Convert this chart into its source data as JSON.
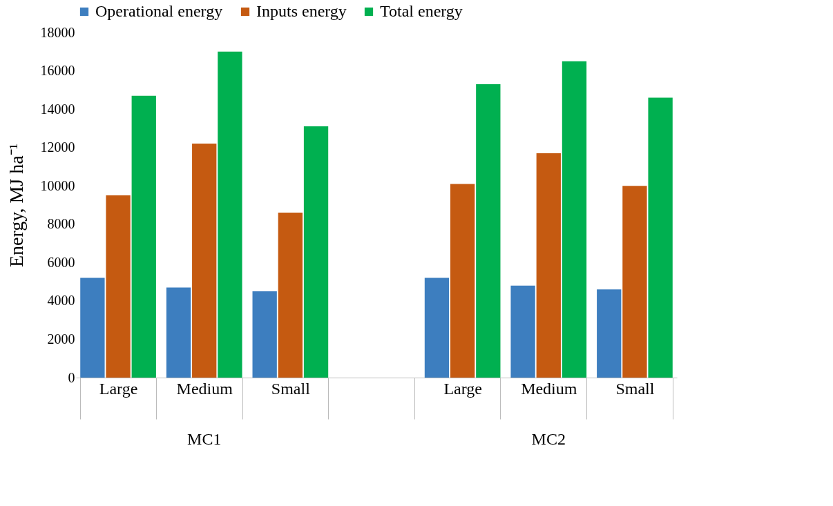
{
  "chart_data": {
    "type": "bar",
    "ylabel": "Energy, MJ ha⁻¹",
    "categories": [
      "Large",
      "Medium",
      "Small",
      null,
      "Large",
      "Medium",
      "Small"
    ],
    "series": [
      {
        "name": "Operational energy",
        "color": "#3d7ebf",
        "values": [
          5200,
          4700,
          4500,
          null,
          5200,
          4800,
          4600
        ]
      },
      {
        "name": "Inputs energy",
        "color": "#c55a11",
        "values": [
          9500,
          12200,
          8600,
          null,
          10100,
          11700,
          10000
        ]
      },
      {
        "name": "Total energy",
        "color": "#00b050",
        "values": [
          14700,
          17000,
          13100,
          null,
          15300,
          16500,
          14600
        ]
      }
    ],
    "ylim": [
      0,
      18000
    ],
    "yticks": [
      0,
      2000,
      4000,
      6000,
      8000,
      10000,
      12000,
      14000,
      16000,
      18000
    ],
    "grid": false,
    "legend": "top",
    "annotations": [
      "MC1",
      "MC2"
    ]
  }
}
